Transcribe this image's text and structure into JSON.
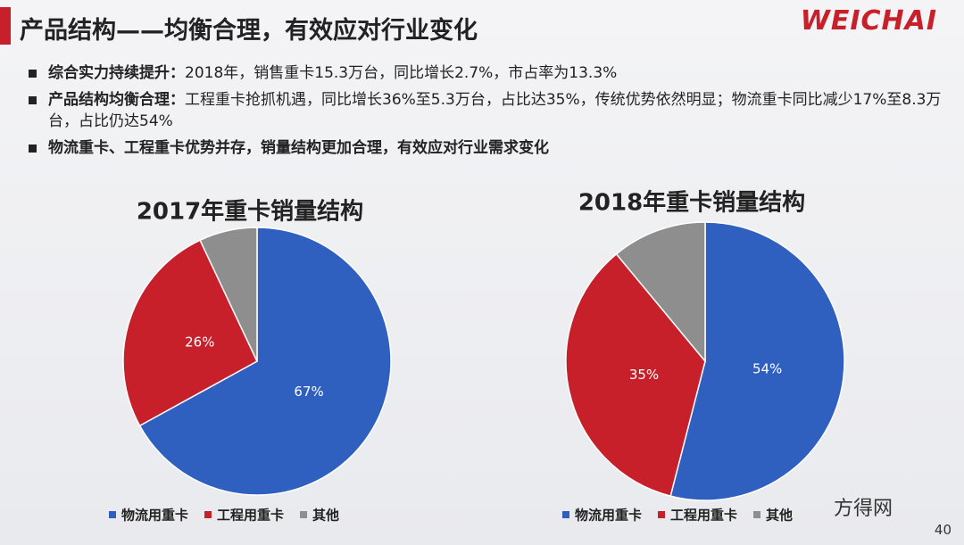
{
  "header": {
    "title": "产品结构——均衡合理，有效应对行业变化",
    "logo": "WEICHAI"
  },
  "bullets": [
    {
      "label": "综合实力持续提升：",
      "text": "2018年，销售重卡15.3万台，同比增长2.7%，市占率为13.3%"
    },
    {
      "label": "产品结构均衡合理：",
      "text": "工程重卡抢抓机遇，同比增长36%至5.3万台，占比达35%，传统优势依然明显；物流重卡同比减少17%至8.3万台，占比仍达54%"
    },
    {
      "text": "物流重卡、工程重卡优势并存，销量结构更加合理，有效应对行业需求变化"
    }
  ],
  "chart_data": [
    {
      "type": "pie",
      "title": "2017年重卡销量结构",
      "categories": [
        "物流用重卡",
        "工程用重卡",
        "其他"
      ],
      "values": [
        67,
        26,
        7
      ],
      "value_labels": [
        "67%",
        "26%",
        null
      ],
      "colors": [
        "#2f5fbf",
        "#c8202a",
        "#8e8e8e"
      ]
    },
    {
      "type": "pie",
      "title": "2018年重卡销量结构",
      "categories": [
        "物流用重卡",
        "工程用重卡",
        "其他"
      ],
      "values": [
        54,
        35,
        11
      ],
      "value_labels": [
        "54%",
        "35%",
        null
      ],
      "colors": [
        "#2f5fbf",
        "#c8202a",
        "#8e8e8e"
      ]
    }
  ],
  "footer": {
    "watermark": "方得网",
    "page": "40"
  }
}
